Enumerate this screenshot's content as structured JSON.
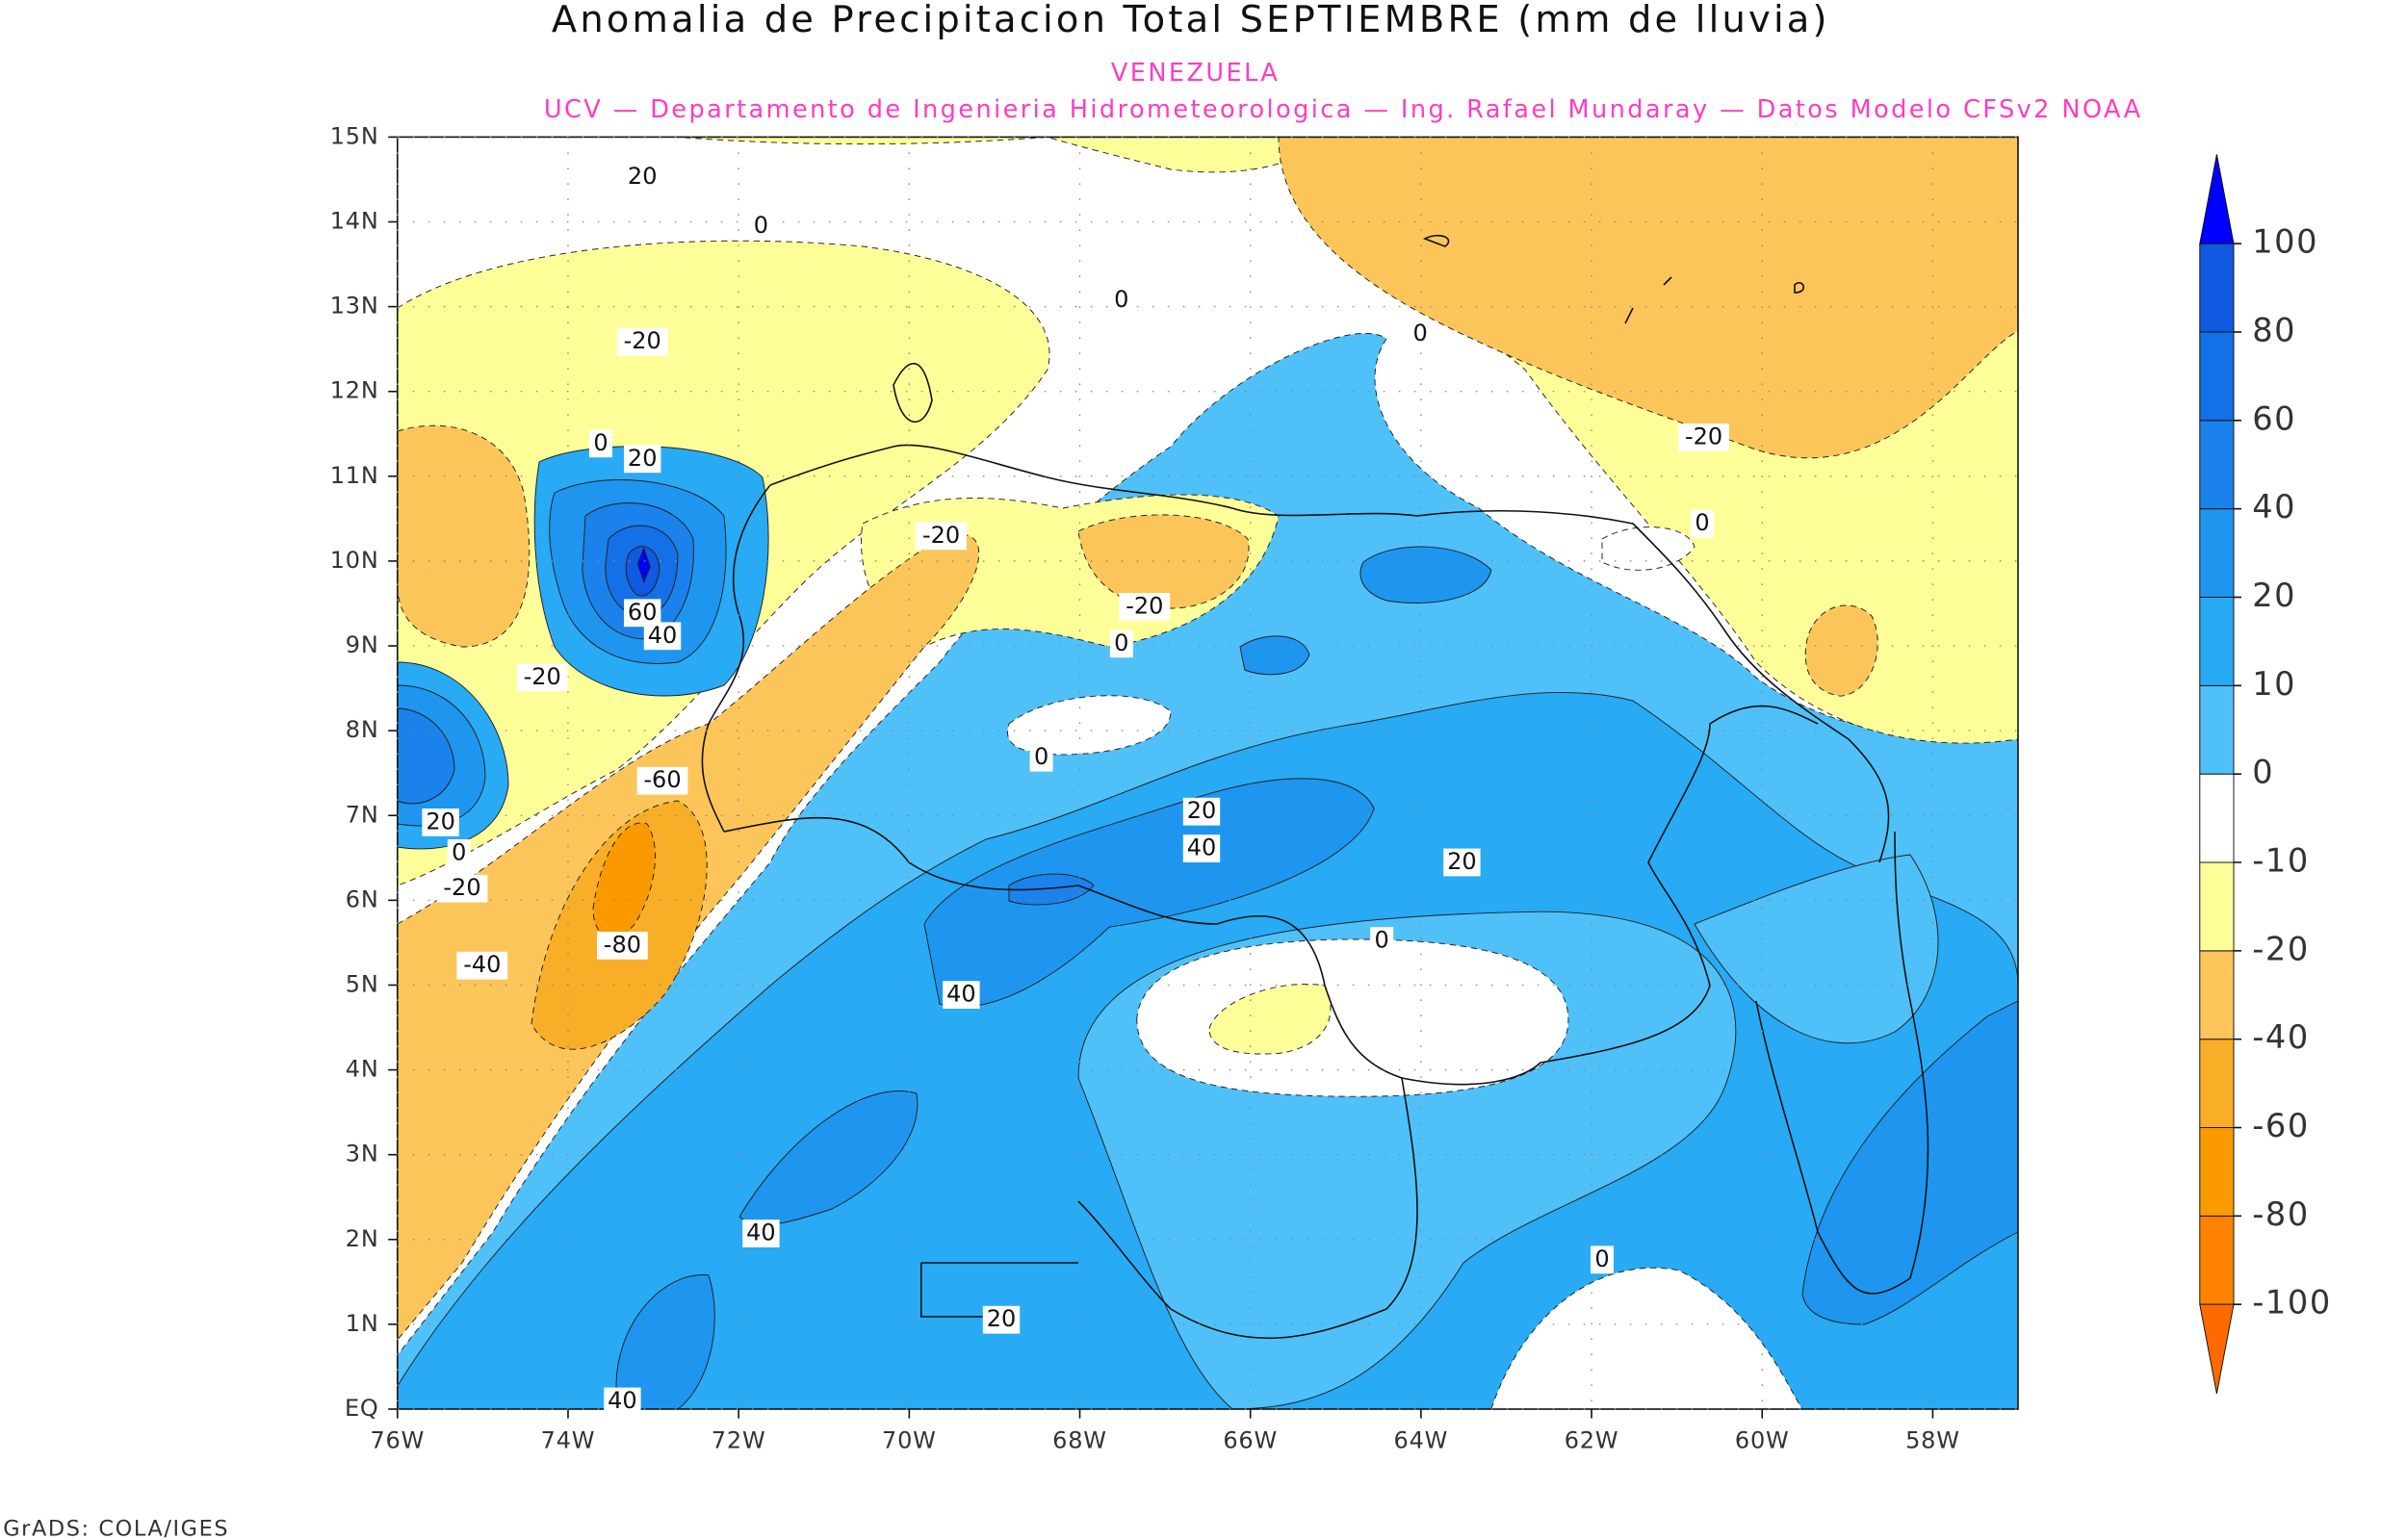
{
  "title": "Anomalia de Precipitacion Total SEPTIEMBRE (mm de lluvia)",
  "subtitle": "VENEZUELA",
  "credit": "UCV — Departamento de Ingenieria Hidrometeorologica — Ing. Rafael Mundaray — Datos Modelo CFSv2 NOAA",
  "footer": "GrADS: COLA/IGES",
  "map": {
    "xlim": [
      -76,
      -57
    ],
    "ylim": [
      0,
      15
    ],
    "xticks": [
      {
        "value": -76,
        "label": "76W"
      },
      {
        "value": -74,
        "label": "74W"
      },
      {
        "value": -72,
        "label": "72W"
      },
      {
        "value": -70,
        "label": "70W"
      },
      {
        "value": -68,
        "label": "68W"
      },
      {
        "value": -66,
        "label": "66W"
      },
      {
        "value": -64,
        "label": "64W"
      },
      {
        "value": -62,
        "label": "62W"
      },
      {
        "value": -60,
        "label": "60W"
      },
      {
        "value": -58,
        "label": "58W"
      }
    ],
    "yticks": [
      {
        "value": 0,
        "label": "EQ"
      },
      {
        "value": 1,
        "label": "1N"
      },
      {
        "value": 2,
        "label": "2N"
      },
      {
        "value": 3,
        "label": "3N"
      },
      {
        "value": 4,
        "label": "4N"
      },
      {
        "value": 5,
        "label": "5N"
      },
      {
        "value": 6,
        "label": "6N"
      },
      {
        "value": 7,
        "label": "7N"
      },
      {
        "value": 8,
        "label": "8N"
      },
      {
        "value": 9,
        "label": "9N"
      },
      {
        "value": 10,
        "label": "10N"
      },
      {
        "value": 11,
        "label": "11N"
      },
      {
        "value": 12,
        "label": "12N"
      },
      {
        "value": 13,
        "label": "13N"
      },
      {
        "value": 14,
        "label": "14N"
      },
      {
        "value": 15,
        "label": "15N"
      }
    ],
    "grid": true,
    "contour_labels": [
      20,
      0,
      0,
      0,
      -20,
      0,
      20,
      -20,
      0,
      -20,
      -20,
      0,
      60,
      40,
      -20,
      0,
      20,
      0,
      -60,
      20,
      40,
      20,
      -20,
      -80,
      -40,
      0,
      40,
      40,
      0,
      20,
      40
    ],
    "colorbar": {
      "levels": [
        -100,
        -80,
        -60,
        -40,
        -20,
        -10,
        0,
        10,
        20,
        40,
        60,
        80,
        100
      ],
      "colors": [
        "#ff6a00",
        "#ff8200",
        "#fa9a00",
        "#f8ae26",
        "#fbc55a",
        "#fefe99",
        "#ffffff",
        "#50c0f8",
        "#28aaf5",
        "#1e96f0",
        "#1a82ea",
        "#1470e6",
        "#0f5ae0",
        "#0000ff"
      ]
    }
  }
}
